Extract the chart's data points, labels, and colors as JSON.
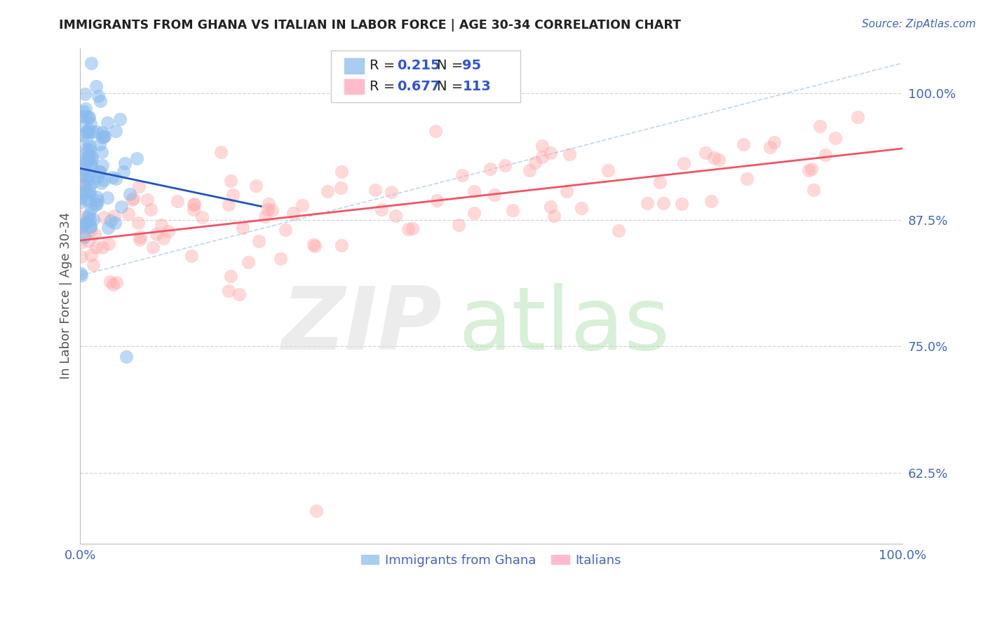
{
  "title": "IMMIGRANTS FROM GHANA VS ITALIAN IN LABOR FORCE | AGE 30-34 CORRELATION CHART",
  "source": "Source: ZipAtlas.com",
  "ylabel": "In Labor Force | Age 30-34",
  "xlim": [
    0.0,
    1.0
  ],
  "ylim": [
    0.555,
    1.045
  ],
  "yticks": [
    0.625,
    0.75,
    0.875,
    1.0
  ],
  "ytick_labels": [
    "62.5%",
    "75.0%",
    "87.5%",
    "100.0%"
  ],
  "xtick_labels": [
    "0.0%",
    "100.0%"
  ],
  "ghana_R": 0.215,
  "ghana_N": 95,
  "italian_R": 0.677,
  "italian_N": 113,
  "ghana_color": "#88BBEE",
  "ghana_edge_color": "#88BBEE",
  "italian_color": "#FFAAAA",
  "italian_edge_color": "#FFAAAA",
  "ghana_trend_color": "#2255BB",
  "italian_trend_color": "#EE5566",
  "ref_line_color": "#AACCEE",
  "background_color": "#FFFFFF",
  "grid_color": "#CCCCCC",
  "title_color": "#222222",
  "axis_label_color": "#555555",
  "tick_color": "#4466BB",
  "source_color": "#4466BB",
  "legend_patch_ghana": "#AACCEE",
  "legend_patch_italian": "#FFBBCC",
  "legend_text_color": "#222222",
  "legend_rn_color": "#3355CC",
  "bottom_legend_color": "#4466BB"
}
